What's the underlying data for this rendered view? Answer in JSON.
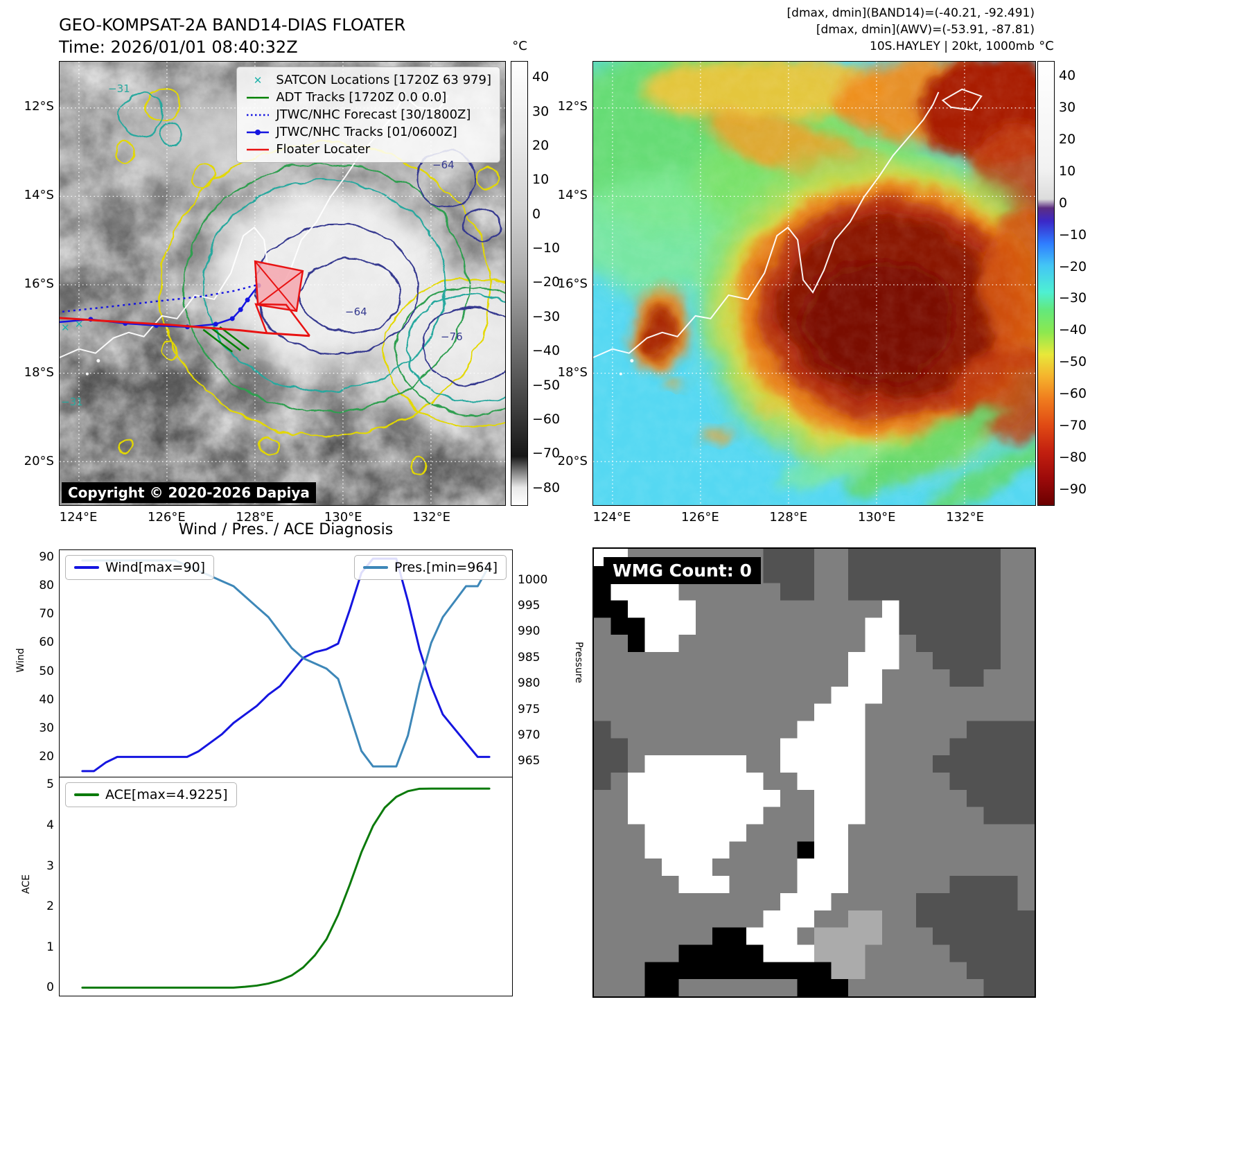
{
  "colors": {
    "wind_line": "#1515e0",
    "pressure_line": "#3d87b8",
    "ace_line": "#0b7a0b",
    "floater_red": "#e81212",
    "track_blue": "#1515e0",
    "adt_green": "#008000",
    "satcon_teal": "#20b2aa"
  },
  "panel_band14": {
    "title_line1": "GEO-KOMPSAT-2A BAND14-DIAS FLOATER",
    "title_line2": "Time: 2026/01/01 08:40:32Z",
    "legend": [
      {
        "label": "SATCON Locations [1720Z 63 979]",
        "marker": "x",
        "color": "#20b2aa"
      },
      {
        "label": "ADT Tracks [1720Z 0.0 0.0]",
        "marker": "line",
        "color": "#008000"
      },
      {
        "label": "JTWC/NHC Forecast [30/1800Z]",
        "marker": "dotted",
        "color": "#1515e0"
      },
      {
        "label": "JTWC/NHC Tracks [01/0600Z]",
        "marker": "line-dot",
        "color": "#1515e0"
      },
      {
        "label": "Floater Locater",
        "marker": "line",
        "color": "#e81212"
      }
    ],
    "copyright": "Copyright © 2020-2026 Dapiya",
    "colorbar": {
      "unit": "°C",
      "ticks": [
        40,
        30,
        20,
        10,
        0,
        -10,
        -20,
        -30,
        -40,
        -50,
        -60,
        -70,
        -80
      ]
    },
    "lat_ticks": [
      "12°S",
      "14°S",
      "16°S",
      "18°S",
      "20°S"
    ],
    "lon_ticks": [
      "124°E",
      "126°E",
      "128°E",
      "130°E",
      "132°E"
    ],
    "contour_labels": [
      "−31",
      "−64",
      "−64",
      "−76",
      "−31"
    ]
  },
  "panel_awv": {
    "header_line1": "[dmax, dmin](BAND14)=(-40.21, -92.491)",
    "header_line2": "[dmax, dmin](AWV)=(-53.91, -87.81)",
    "header_line3": "10S.HAYLEY | 20kt, 1000mb",
    "colorbar": {
      "unit": "°C",
      "ticks": [
        40,
        30,
        20,
        10,
        0,
        -10,
        -20,
        -30,
        -40,
        -50,
        -60,
        -70,
        -80,
        -90
      ]
    },
    "lat_ticks": [
      "12°S",
      "14°S",
      "16°S",
      "18°S",
      "20°S"
    ],
    "lon_ticks": [
      "124°E",
      "126°E",
      "128°E",
      "130°E",
      "132°E"
    ]
  },
  "diagnosis": {
    "title": "Wind / Pres. / ACE Diagnosis",
    "wind_legend": "Wind[max=90]",
    "pres_legend": "Pres.[min=964]",
    "ace_legend": "ACE[max=4.9225]",
    "wind_axis_label": "Wind",
    "pressure_axis_label": "Pressure",
    "ace_axis_label": "ACE",
    "wind_ticks": [
      90,
      80,
      70,
      60,
      50,
      40,
      30,
      20
    ],
    "pressure_ticks": [
      1000,
      995,
      990,
      985,
      980,
      975,
      970,
      965
    ],
    "ace_ticks": [
      5,
      4,
      3,
      2,
      1,
      0
    ]
  },
  "chart_data": [
    {
      "type": "line",
      "title": "Wind / Pres. / ACE Diagnosis",
      "x": [
        0,
        1,
        2,
        3,
        4,
        5,
        6,
        7,
        8,
        9,
        10,
        11,
        12,
        13,
        14,
        15,
        16,
        17,
        18,
        19,
        20,
        21,
        22,
        23,
        24,
        25,
        26,
        27,
        28,
        29,
        30,
        31,
        32,
        33,
        34,
        35
      ],
      "series": [
        {
          "name": "Wind[max=90]",
          "axis": "left",
          "color": "#1515e0",
          "values": [
            15,
            15,
            18,
            20,
            20,
            20,
            20,
            20,
            20,
            20,
            22,
            25,
            28,
            32,
            35,
            38,
            42,
            45,
            50,
            55,
            57,
            58,
            60,
            72,
            85,
            90,
            90,
            90,
            75,
            58,
            45,
            35,
            30,
            25,
            20,
            20
          ]
        },
        {
          "name": "Pres.[min=964]",
          "axis": "right",
          "color": "#3d87b8",
          "values": [
            1004,
            1004,
            1004,
            1004,
            1004,
            1004,
            1004,
            1004,
            1004,
            1003,
            1002,
            1001,
            1000,
            999,
            997,
            995,
            993,
            990,
            987,
            985,
            984,
            983,
            981,
            974,
            967,
            964,
            964,
            964,
            970,
            980,
            988,
            993,
            996,
            999,
            999,
            1003
          ]
        }
      ],
      "ylim_left": [
        13,
        93
      ],
      "ylim_right": [
        962,
        1006
      ],
      "ylabel_left": "Wind",
      "ylabel_right": "Pressure",
      "grid": false,
      "legend_position": "upper-left / upper-right"
    },
    {
      "type": "line",
      "x": [
        0,
        1,
        2,
        3,
        4,
        5,
        6,
        7,
        8,
        9,
        10,
        11,
        12,
        13,
        14,
        15,
        16,
        17,
        18,
        19,
        20,
        21,
        22,
        23,
        24,
        25,
        26,
        27,
        28,
        29,
        30,
        31,
        32,
        33,
        34,
        35
      ],
      "series": [
        {
          "name": "ACE[max=4.9225]",
          "color": "#0b7a0b",
          "values": [
            0,
            0,
            0,
            0,
            0,
            0,
            0,
            0,
            0,
            0,
            0,
            0,
            0,
            0,
            0.02,
            0.05,
            0.1,
            0.18,
            0.3,
            0.5,
            0.8,
            1.2,
            1.8,
            2.55,
            3.35,
            4.0,
            4.45,
            4.72,
            4.86,
            4.92,
            4.9225,
            4.9225,
            4.9225,
            4.9225,
            4.9225,
            4.9225
          ]
        }
      ],
      "ylim": [
        -0.2,
        5.2
      ],
      "ylabel": "ACE",
      "grid": false,
      "legend_position": "upper-left"
    }
  ],
  "wmg": {
    "label": "WMG Count: 0",
    "palette": {
      "K": "#000000",
      "D": "#525252",
      "M": "#7f7f7f",
      "L": "#ababab",
      "W": "#ffffff"
    },
    "grid": [
      "WWMMMMMMMMDDDMMDDDDDDDDDMM",
      "KWWWMMMMMMDDDMMDDDDDDDDDMM",
      "KWWWWMMMMMMDDMMDDDDDDDDDMM",
      "KKWWWWMMMMMMMMMMMWDDDDDDMM",
      "MKKWWWMMMMMMMMMMWWDDDDDDMM",
      "MMKWWMMMMMMMMMMMWWMDDDDDMM",
      "MMMMMMMMMMMMMMMWWWMMDDDDMM",
      "MMMMMMMMMMMMMMMWWMMMMDDMMM",
      "MMMMMMMMMMMMMMWWWMMMMMMMMM",
      "MMMMMMMMMMMMMWWWMMMMMMMMMM",
      "DMMMMMMMMMMMWWWWMMMMMMDDDD",
      "DDMMMMMMMMMWWWWWMMMMMDDDDD",
      "DDMWWWWWWMMWWWWWMMMMDDDDDD",
      "DMWWWWWWWWMMWWWWMMMMMDDDDD",
      "MMWWWWWWWWWMMWWWMMMMMMDDDD",
      "MMWWWWWWWWMMMWWWMMMMMMMDDD",
      "MMMWWWWWWMMMMWWMMMMMMMMMMM",
      "MMMWWWWWMMMMKWWMMMMMMMMMMM",
      "MMMMWWWMMMMMWWWMMMMMMMMMMM",
      "MMMMMW WMMMMWWWMMMMMMDDDDMM",
      "MMMMMMMMMMMWWWMMMMMDDDDDDM",
      "MMMMMMMMMMWWWMMLLMMDDDDDDD",
      "MMMMMMMKKWWWMLLLLMMMDDDDDD",
      "MMMMMKKKKKWWWLLLMMMMMDDDDD",
      "MMMKKKKKKKKKKKLLMMMMMMDDDD",
      "MMMKKMMMMMMMKKKMMMMMMMMDDD"
    ]
  }
}
